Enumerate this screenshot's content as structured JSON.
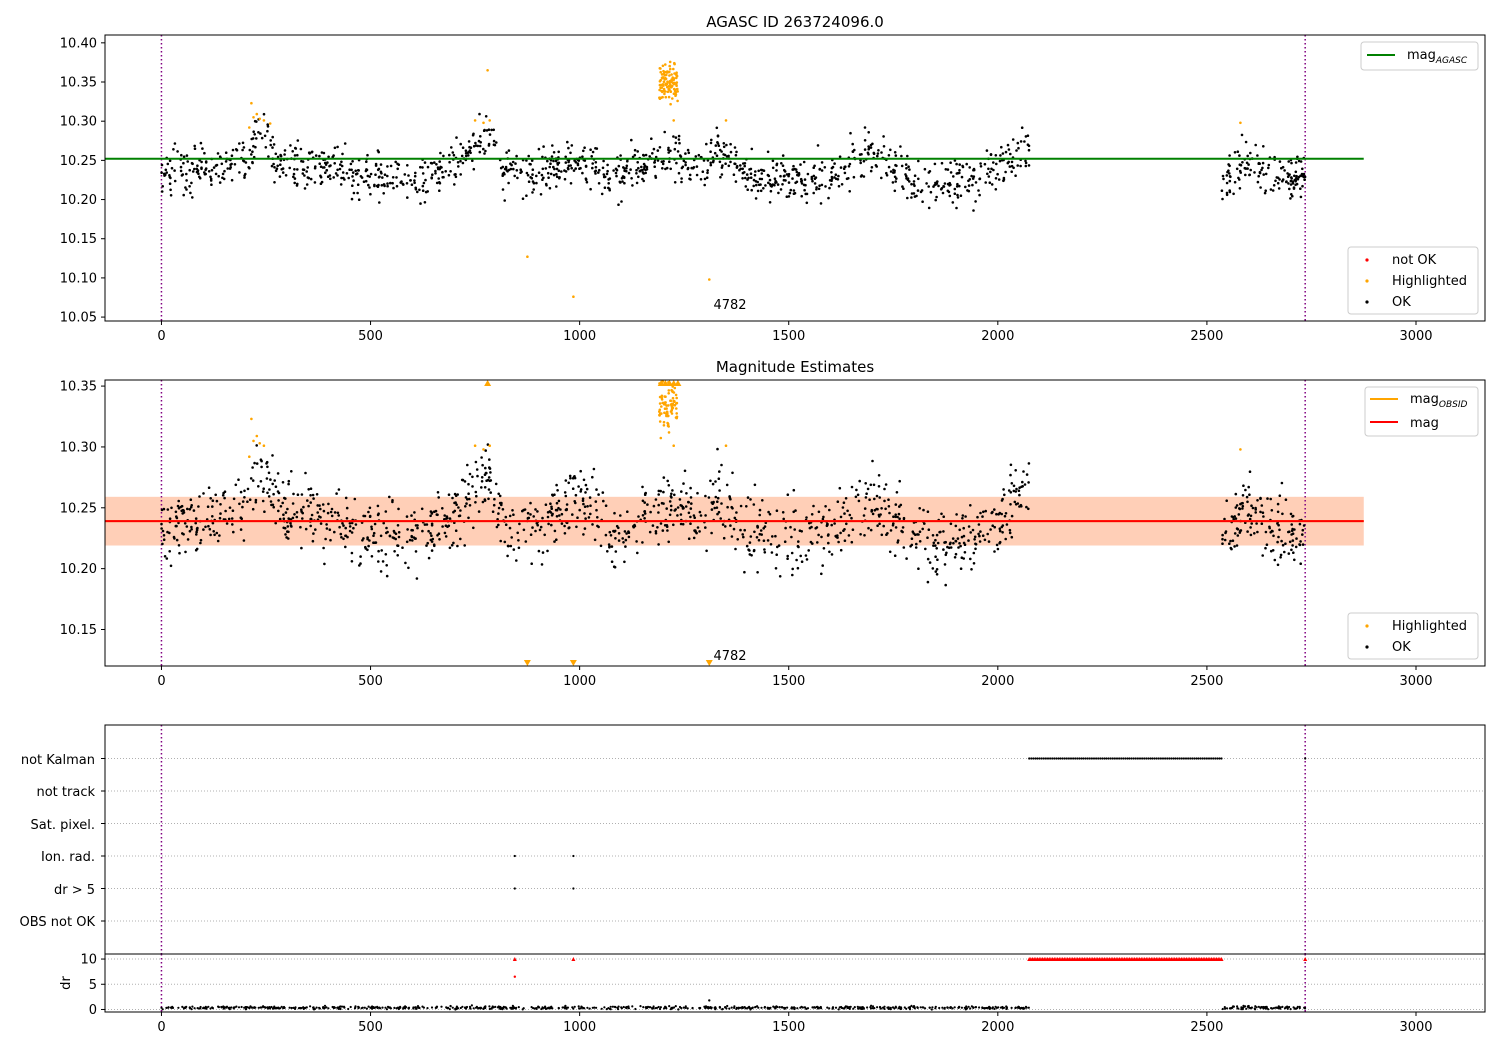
{
  "chart_data": [
    {
      "type": "scatter",
      "title": "AGASC ID 263724096.0",
      "xlabel": "",
      "ylabel": "",
      "xlim": [
        -135,
        3165
      ],
      "ylim": [
        10.045,
        10.41
      ],
      "xticks": [
        0,
        500,
        1000,
        1500,
        2000,
        2500,
        3000
      ],
      "xtick_labels": [
        "0",
        "500",
        "1000",
        "1500",
        "2000",
        "2500",
        "3000"
      ],
      "yticks": [
        10.05,
        10.1,
        10.15,
        10.2,
        10.25,
        10.3,
        10.35,
        10.4
      ],
      "ytick_labels": [
        "10.05",
        "10.10",
        "10.15",
        "10.20",
        "10.25",
        "10.30",
        "10.35",
        "10.40"
      ],
      "grid": false,
      "vlines": [
        0,
        2735
      ],
      "vline_color": "#800080",
      "hline": {
        "y": 10.252,
        "x": [
          -135,
          2875
        ],
        "color": "#008000",
        "label_main": "mag",
        "label_sub": "AGASC"
      },
      "annotation": {
        "text": "4782",
        "x": 1320,
        "y": 10.06
      },
      "legends": [
        {
          "position": "upper right",
          "entries": [
            {
              "label_main": "mag",
              "label_sub": "AGASC",
              "kind": "line",
              "color": "#008000"
            }
          ]
        },
        {
          "position": "lower right",
          "entries": [
            {
              "label": "not OK",
              "kind": "dot",
              "color": "#ff0000"
            },
            {
              "label": "Highlighted",
              "kind": "dot",
              "color": "#ffa500"
            },
            {
              "label": "OK",
              "kind": "dot",
              "color": "#000000"
            }
          ]
        }
      ],
      "ok_points": {
        "color": "#000000",
        "segments": [
          {
            "x_start": 0,
            "x_end": 2075,
            "count": 1250
          },
          {
            "x_start": 2535,
            "x_end": 2735,
            "count": 140
          }
        ],
        "profile_x": [
          0,
          100,
          200,
          230,
          300,
          400,
          500,
          600,
          700,
          780,
          820,
          900,
          1000,
          1080,
          1150,
          1240,
          1280,
          1330,
          1400,
          1500,
          1600,
          1700,
          1800,
          1900,
          2000,
          2060,
          2535,
          2600,
          2700,
          2735
        ],
        "profile_y": [
          10.235,
          10.238,
          10.25,
          10.28,
          10.245,
          10.24,
          10.23,
          10.225,
          10.245,
          10.28,
          10.235,
          10.235,
          10.255,
          10.225,
          10.245,
          10.26,
          10.235,
          10.26,
          10.23,
          10.225,
          10.23,
          10.26,
          10.225,
          10.22,
          10.24,
          10.265,
          10.23,
          10.25,
          10.225,
          10.23
        ],
        "spread": 0.014
      },
      "highlighted_points": {
        "color": "#ffa500",
        "x": [
          210,
          215,
          220,
          228,
          235,
          245,
          260,
          750,
          770,
          785,
          780,
          875,
          985,
          1225,
          1310,
          1350,
          2580
        ],
        "y": [
          10.292,
          10.323,
          10.305,
          10.309,
          10.303,
          10.301,
          10.297,
          10.301,
          10.298,
          10.301,
          10.365,
          10.127,
          10.076,
          10.301,
          10.098,
          10.301,
          10.298
        ],
        "cluster": {
          "x_start": 1190,
          "x_end": 1235,
          "y_center": 10.35,
          "y_spread": 0.013,
          "count": 110
        }
      }
    },
    {
      "type": "scatter",
      "title": "Magnitude Estimates",
      "xlabel": "",
      "ylabel": "",
      "xlim": [
        -135,
        3165
      ],
      "ylim": [
        10.12,
        10.355
      ],
      "xticks": [
        0,
        500,
        1000,
        1500,
        2000,
        2500,
        3000
      ],
      "xtick_labels": [
        "0",
        "500",
        "1000",
        "1500",
        "2000",
        "2500",
        "3000"
      ],
      "yticks": [
        10.15,
        10.2,
        10.25,
        10.3,
        10.35
      ],
      "ytick_labels": [
        "10.15",
        "10.20",
        "10.25",
        "10.30",
        "10.35"
      ],
      "grid": false,
      "vlines": [
        0,
        2735
      ],
      "vline_color": "#800080",
      "bands": [
        {
          "y_low": 10.219,
          "y_high": 10.259,
          "x": [
            -135,
            2875
          ],
          "color": "#ff9ca8",
          "opacity": 0.3
        },
        {
          "y_low": 10.219,
          "y_high": 10.259,
          "x": [
            -135,
            2875
          ],
          "color": "#ffa64d",
          "opacity": 0.3
        }
      ],
      "hlines": [
        {
          "y": 10.239,
          "x": [
            -135,
            2875
          ],
          "color": "#ffa500"
        },
        {
          "y": 10.239,
          "x": [
            -135,
            2875
          ],
          "color": "#ff0000"
        }
      ],
      "annotation": {
        "text": "4782",
        "x": 1320,
        "y": 10.125
      },
      "clipped_markers": {
        "color": "#ffa500",
        "top": {
          "x": [
            780,
            1195,
            1205,
            1215,
            1225,
            1235
          ]
        },
        "bottom": {
          "x": [
            875,
            985,
            1310
          ]
        }
      },
      "legends": [
        {
          "position": "upper right",
          "entries": [
            {
              "label_main": "mag",
              "label_sub": "OBSID",
              "kind": "line",
              "color": "#ffa500"
            },
            {
              "label_main": "mag",
              "label_sub": "",
              "kind": "line",
              "color": "#ff0000"
            }
          ]
        },
        {
          "position": "lower right",
          "entries": [
            {
              "label": "Highlighted",
              "kind": "dot",
              "color": "#ffa500"
            },
            {
              "label": "OK",
              "kind": "dot",
              "color": "#000000"
            }
          ]
        }
      ],
      "ok_points": {
        "color": "#000000",
        "segments": [
          {
            "x_start": 0,
            "x_end": 2075,
            "count": 1250
          },
          {
            "x_start": 2535,
            "x_end": 2735,
            "count": 140
          }
        ],
        "profile_x": [
          0,
          100,
          200,
          230,
          300,
          400,
          500,
          600,
          700,
          780,
          820,
          900,
          1000,
          1080,
          1150,
          1240,
          1280,
          1330,
          1400,
          1500,
          1600,
          1700,
          1800,
          1900,
          2000,
          2060,
          2535,
          2600,
          2700,
          2735
        ],
        "profile_y": [
          10.235,
          10.238,
          10.25,
          10.28,
          10.245,
          10.24,
          10.23,
          10.225,
          10.245,
          10.28,
          10.235,
          10.235,
          10.255,
          10.225,
          10.245,
          10.26,
          10.235,
          10.26,
          10.23,
          10.225,
          10.23,
          10.26,
          10.225,
          10.22,
          10.24,
          10.265,
          10.23,
          10.25,
          10.225,
          10.23
        ],
        "spread": 0.014
      },
      "highlighted_points": {
        "color": "#ffa500",
        "x": [
          210,
          215,
          220,
          228,
          235,
          245,
          750,
          770,
          785,
          1225,
          1350,
          2580
        ],
        "y": [
          10.292,
          10.323,
          10.305,
          10.309,
          10.303,
          10.301,
          10.301,
          10.298,
          10.301,
          10.301,
          10.301,
          10.298
        ],
        "cluster": {
          "x_start": 1190,
          "x_end": 1235,
          "y_center": 10.335,
          "y_spread": 0.012,
          "count": 90
        }
      }
    },
    {
      "type": "scatter",
      "title": "",
      "xlabel": "",
      "ylabel": "",
      "xlim": [
        -135,
        3165
      ],
      "categories": [
        "not Kalman",
        "not track",
        "Sat. pixel.",
        "Ion. rad.",
        "dr > 5",
        "OBS not OK"
      ],
      "grid": true,
      "vlines": [
        0,
        2735
      ],
      "vline_color": "#800080",
      "flags": [
        {
          "category": "not Kalman",
          "ranges": [
            [
              2075,
              2535
            ]
          ],
          "x": [
            2735
          ]
        },
        {
          "category": "not track",
          "ranges": [],
          "x": []
        },
        {
          "category": "Sat. pixel.",
          "ranges": [],
          "x": []
        },
        {
          "category": "Ion. rad.",
          "ranges": [],
          "x": [
            845,
            985
          ]
        },
        {
          "category": "dr > 5",
          "ranges": [],
          "x": [
            845,
            985
          ]
        },
        {
          "category": "OBS not OK",
          "ranges": [],
          "x": []
        }
      ]
    },
    {
      "type": "scatter",
      "title": "",
      "xlabel": "",
      "ylabel": "dr",
      "xlim": [
        -135,
        3165
      ],
      "ylim": [
        -0.5,
        11
      ],
      "xticks": [
        0,
        500,
        1000,
        1500,
        2000,
        2500,
        3000
      ],
      "xtick_labels": [
        "0",
        "500",
        "1000",
        "1500",
        "2000",
        "2500",
        "3000"
      ],
      "yticks": [
        0,
        5,
        10
      ],
      "ytick_labels": [
        "0",
        "5",
        "10"
      ],
      "grid": true,
      "vlines": [
        0,
        2735
      ],
      "vline_color": "#800080",
      "ok_points": {
        "color": "#000000",
        "segments": [
          {
            "x_start": 0,
            "x_end": 2075,
            "count": 700
          },
          {
            "x_start": 2535,
            "x_end": 2735,
            "count": 80
          }
        ],
        "level": 0.35,
        "spread": 0.25
      },
      "outliers": [
        {
          "x": 845,
          "y": 10,
          "color": "#ff0000",
          "marker": "triangle"
        },
        {
          "x": 845,
          "y": 6.5,
          "color": "#ff0000",
          "marker": "dot"
        },
        {
          "x": 985,
          "y": 10,
          "color": "#ff0000",
          "marker": "triangle"
        },
        {
          "x": 1310,
          "y": 1.8,
          "color": "#000000",
          "marker": "dot"
        },
        {
          "x": 2735,
          "y": 10,
          "color": "#ff0000",
          "marker": "triangle"
        }
      ],
      "clipped_run": {
        "x_start": 2075,
        "x_end": 2535,
        "y": 10,
        "color": "#ff0000"
      }
    }
  ]
}
